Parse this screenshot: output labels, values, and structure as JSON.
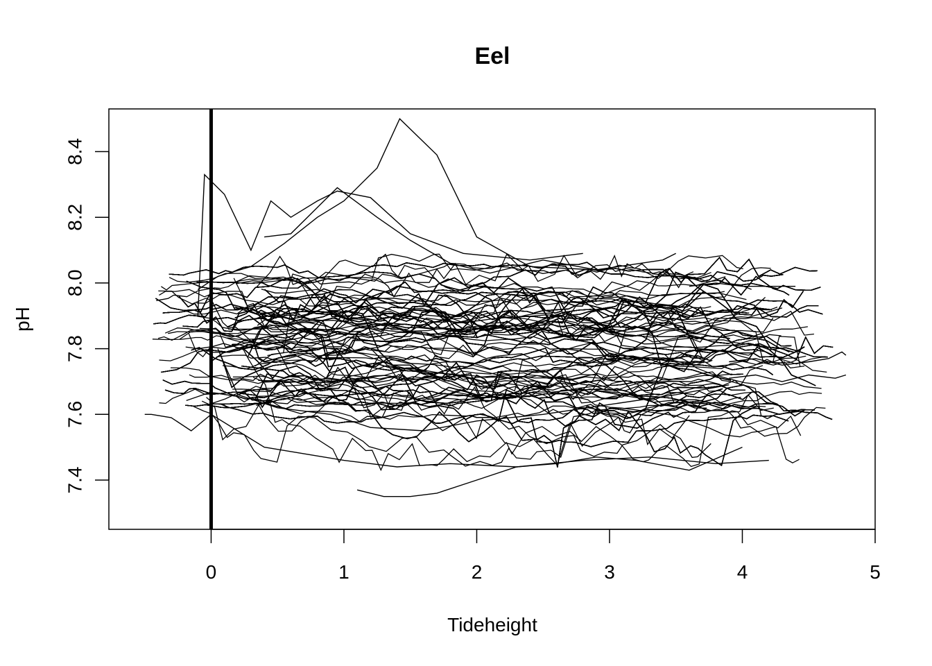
{
  "chart_data": {
    "type": "line",
    "title": "Eel",
    "xlabel": "Tideheight",
    "ylabel": "pH",
    "xlim": [
      -0.77,
      5.0
    ],
    "ylim": [
      7.25,
      8.53
    ],
    "x_ticks": [
      0,
      1,
      2,
      3,
      4,
      5
    ],
    "y_ticks": [
      7.4,
      7.6,
      7.8,
      8.0,
      8.2,
      8.4
    ],
    "x_tick_labels": [
      "0",
      "1",
      "2",
      "3",
      "4",
      "5"
    ],
    "y_tick_labels": [
      "7.4",
      "7.6",
      "7.8",
      "8.0",
      "8.2",
      "8.4"
    ],
    "vline": {
      "x": 0
    },
    "grid": false,
    "legend": "none",
    "line_color": "#000000",
    "series_summary": {
      "description": "Several hundred overlapping daily pH vs tide-height traces",
      "x_range": [
        -0.55,
        4.8
      ],
      "core_y_band": [
        7.55,
        8.07
      ],
      "extreme_high": {
        "x": 1.42,
        "y": 8.5
      },
      "extreme_low": {
        "x": 1.14,
        "y": 7.31
      }
    },
    "series": [
      {
        "x": [
          -0.1,
          0.05,
          0.3,
          0.55,
          0.8,
          1.0,
          1.25,
          1.42,
          1.7,
          2.0,
          2.4,
          2.9
        ],
        "y": [
          7.98,
          8.02,
          8.05,
          8.12,
          8.2,
          8.25,
          8.35,
          8.5,
          8.39,
          8.14,
          8.05,
          8.04
        ]
      },
      {
        "x": [
          -0.1,
          -0.05,
          0.1,
          0.3,
          0.45,
          0.6,
          0.8,
          0.95,
          1.2,
          1.5,
          1.9,
          2.4,
          2.8
        ],
        "y": [
          7.9,
          8.33,
          8.27,
          8.1,
          8.25,
          8.2,
          8.25,
          8.28,
          8.26,
          8.15,
          8.09,
          8.07,
          8.09
        ]
      },
      {
        "x": [
          0.4,
          0.6,
          0.8,
          0.95,
          1.05,
          1.25,
          1.5,
          1.8,
          2.1,
          2.5,
          2.9,
          3.4,
          3.5
        ],
        "y": [
          8.14,
          8.15,
          8.23,
          8.29,
          8.26,
          8.2,
          8.13,
          8.06,
          8.03,
          8.07,
          8.04,
          8.07,
          8.09
        ]
      },
      {
        "x": [
          -0.5,
          -0.45,
          -0.3,
          -0.15,
          0.0,
          0.2,
          0.4,
          0.7,
          1.0,
          1.4,
          1.8,
          2.3,
          2.8,
          3.3,
          3.8,
          4.2
        ],
        "y": [
          7.6,
          7.6,
          7.59,
          7.55,
          7.6,
          7.55,
          7.5,
          7.48,
          7.46,
          7.44,
          7.45,
          7.44,
          7.46,
          7.47,
          7.45,
          7.46
        ]
      },
      {
        "x": [
          1.1,
          1.3,
          1.5,
          1.7,
          2.0,
          2.3,
          2.6,
          2.9,
          3.2,
          3.6,
          4.0
        ],
        "y": [
          7.37,
          7.35,
          7.35,
          7.36,
          7.4,
          7.44,
          7.45,
          7.47,
          7.46,
          7.43,
          7.5
        ]
      },
      {
        "x": [
          3.9,
          4.1,
          4.3,
          4.5,
          4.65,
          4.75,
          4.78
        ],
        "y": [
          7.76,
          7.77,
          7.75,
          7.76,
          7.77,
          7.79,
          7.78
        ]
      },
      {
        "x": [
          3.9,
          4.1,
          4.3,
          4.5,
          4.7,
          4.78
        ],
        "y": [
          7.71,
          7.72,
          7.7,
          7.72,
          7.71,
          7.72
        ]
      },
      {
        "x": [
          3.6,
          3.8,
          4.0,
          4.2,
          4.4
        ],
        "y": [
          7.99,
          8.0,
          7.99,
          7.99,
          7.99
        ]
      },
      {
        "x": [
          0.05,
          0.2,
          0.5,
          0.9,
          1.2,
          1.6,
          2.0,
          2.5,
          3.0,
          3.5,
          3.9
        ],
        "y": [
          7.8,
          7.66,
          7.62,
          7.6,
          7.56,
          7.55,
          7.58,
          7.6,
          7.63,
          7.66,
          7.69
        ]
      }
    ]
  }
}
